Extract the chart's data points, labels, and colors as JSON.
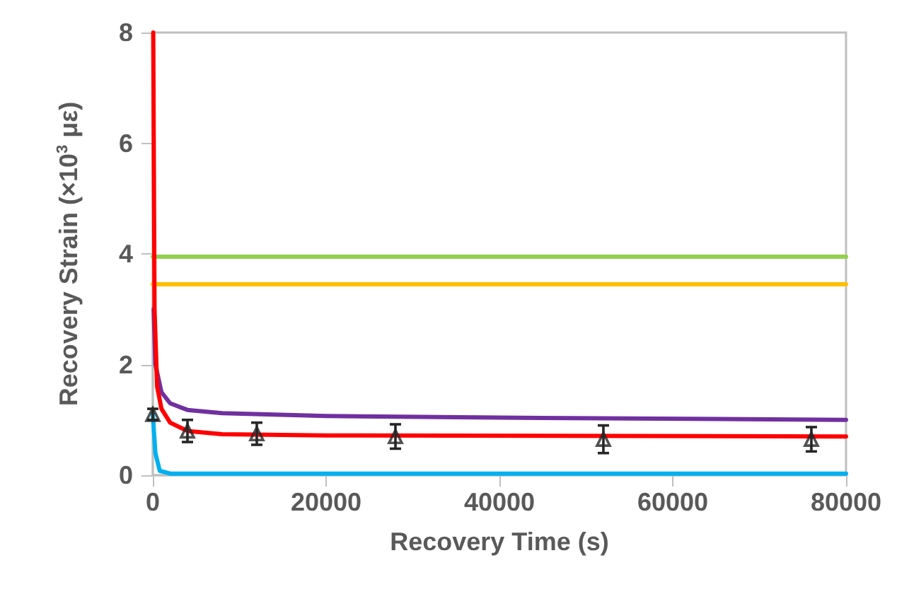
{
  "chart_data": {
    "type": "line",
    "xlabel": "Recovery Time (s)",
    "ylabel": "Recovery Strain (×10$^{3}$ με)",
    "xlim": [
      0,
      80000
    ],
    "xticks": [
      0,
      20000,
      40000,
      60000,
      80000
    ],
    "ylim": [
      0,
      8
    ],
    "yticks": [
      0,
      2,
      4,
      6,
      8
    ],
    "grid": false,
    "series": [
      {
        "color": "#92d050",
        "x": [
          0,
          80000
        ],
        "values": [
          3.95,
          3.95
        ]
      },
      {
        "color": "#ffc000",
        "x": [
          0,
          80000
        ],
        "values": [
          3.45,
          3.45
        ]
      },
      {
        "color": "#7030a0",
        "x": [
          100,
          300,
          1000,
          2000,
          4000,
          8000,
          20000,
          40000,
          80000
        ],
        "values": [
          3,
          2,
          1.5,
          1.3,
          1.18,
          1.12,
          1.07,
          1.04,
          1.0
        ]
      },
      {
        "color": "#00b0f0",
        "x": [
          0,
          300,
          800,
          2000,
          80000
        ],
        "values": [
          1.1,
          0.4,
          0.08,
          0.03,
          0.03
        ]
      },
      {
        "color": "#ff0000",
        "x": [
          50,
          200,
          500,
          1000,
          2000,
          4000,
          8000,
          20000,
          80000
        ],
        "values": [
          8,
          3,
          1.6,
          1.2,
          0.95,
          0.8,
          0.74,
          0.72,
          0.7
        ]
      },
      {
        "type": "scatter",
        "color": "#262626",
        "marker": "triangle",
        "x": [
          0,
          4000,
          12000,
          28000,
          52000,
          76000
        ],
        "values": [
          1.1,
          0.8,
          0.75,
          0.7,
          0.65,
          0.65
        ],
        "errors": [
          0.1,
          0.2,
          0.2,
          0.22,
          0.25,
          0.22
        ]
      }
    ]
  }
}
